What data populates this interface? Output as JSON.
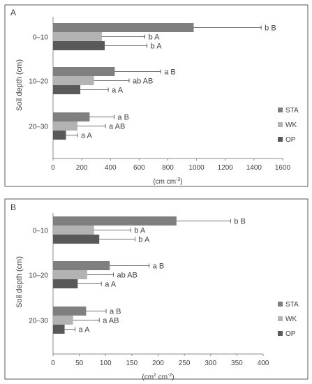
{
  "chart_data": [
    {
      "panel_label": "A",
      "type": "bar",
      "orientation": "horizontal",
      "ylabel": "Soil depth (cm)",
      "xlabel": "(cm cm",
      "xlabel_sup": "-3",
      "xlabel_end": ")",
      "xlim": [
        0,
        1600
      ],
      "xticks": [
        0,
        200,
        400,
        600,
        800,
        1000,
        1200,
        1400,
        1600
      ],
      "categories": [
        "0–10",
        "10–20",
        "20–30"
      ],
      "series": [
        {
          "name": "STA",
          "color": "#7f7f7f",
          "values": [
            980,
            430,
            255
          ],
          "errors": [
            470,
            320,
            170
          ],
          "labels": [
            "b B",
            "a B",
            "a B"
          ]
        },
        {
          "name": "WK",
          "color": "#b3b3b3",
          "values": [
            340,
            285,
            170
          ],
          "errors": [
            300,
            245,
            195
          ],
          "labels": [
            "b A",
            "ab AB",
            "a AB"
          ]
        },
        {
          "name": "OP",
          "color": "#595959",
          "values": [
            360,
            190,
            90
          ],
          "errors": [
            295,
            195,
            80
          ],
          "labels": [
            "b A",
            "a A",
            "a A"
          ]
        }
      ],
      "legend_position": "right"
    },
    {
      "panel_label": "B",
      "type": "bar",
      "orientation": "horizontal",
      "ylabel": "Soil depth (cm)",
      "xlabel": "(cm",
      "xlabel_sup": "2",
      "xlabel_end": " cm",
      "xlabel_sup2": "-2",
      "xlabel_end2": ")",
      "xlim": [
        0,
        400
      ],
      "xticks": [
        0,
        50,
        100,
        150,
        200,
        250,
        300,
        350,
        400
      ],
      "categories": [
        "0–10",
        "10–20",
        "20–30"
      ],
      "series": [
        {
          "name": "STA",
          "color": "#7f7f7f",
          "values": [
            235,
            108,
            63
          ],
          "errors": [
            103,
            75,
            38
          ],
          "labels": [
            "b B",
            "a B",
            "a B"
          ]
        },
        {
          "name": "WK",
          "color": "#b3b3b3",
          "values": [
            78,
            65,
            38
          ],
          "errors": [
            70,
            50,
            50
          ],
          "labels": [
            "b A",
            "ab AB",
            "a AB"
          ]
        },
        {
          "name": "OP",
          "color": "#595959",
          "values": [
            88,
            47,
            22
          ],
          "errors": [
            68,
            45,
            20
          ],
          "labels": [
            "b A",
            "a A",
            "a A"
          ]
        }
      ],
      "legend_position": "right"
    }
  ]
}
